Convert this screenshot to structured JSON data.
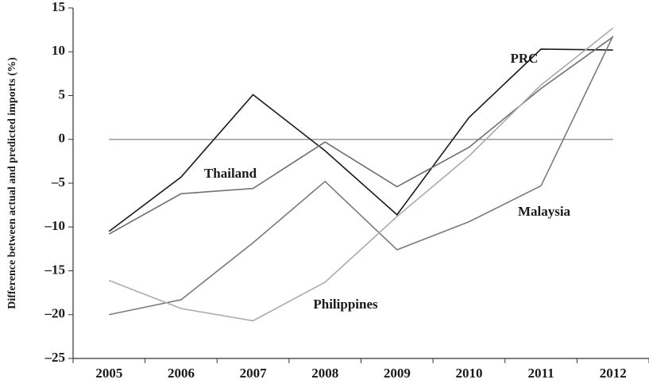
{
  "chart_data": {
    "type": "line",
    "y_label": "Difference between actual and predicted imports (%)",
    "categories": [
      "2005",
      "2006",
      "2007",
      "2008",
      "2009",
      "2010",
      "2011",
      "2012"
    ],
    "series": [
      {
        "name": "PRC",
        "color": "#1a1a1a",
        "values": [
          -10.5,
          -4.3,
          5.1,
          -1.3,
          -8.6,
          2.5,
          10.3,
          10.2
        ]
      },
      {
        "name": "Thailand",
        "color": "#6e6e6e",
        "values": [
          -10.8,
          -6.2,
          -5.6,
          -0.3,
          -5.4,
          -0.9,
          5.8,
          11.7
        ]
      },
      {
        "name": "Malaysia",
        "color": "#7a7a7a",
        "values": [
          -20,
          -18.3,
          -11.8,
          -4.8,
          -12.6,
          -9.4,
          -5.3,
          11.8
        ]
      },
      {
        "name": "Philippines",
        "color": "#ababab",
        "values": [
          -16.1,
          -19.3,
          -20.7,
          -16.3,
          -8.8,
          -1.9,
          6.2,
          12.7
        ]
      }
    ],
    "hline": 0,
    "ylim": [
      -25,
      15
    ],
    "yticks": [
      {
        "value": -25,
        "label": "–25"
      },
      {
        "value": -20,
        "label": "–20"
      },
      {
        "value": -15,
        "label": "–15"
      },
      {
        "value": -10,
        "label": "–10"
      },
      {
        "value": -5,
        "label": "–5"
      },
      0,
      5,
      10,
      15
    ]
  }
}
